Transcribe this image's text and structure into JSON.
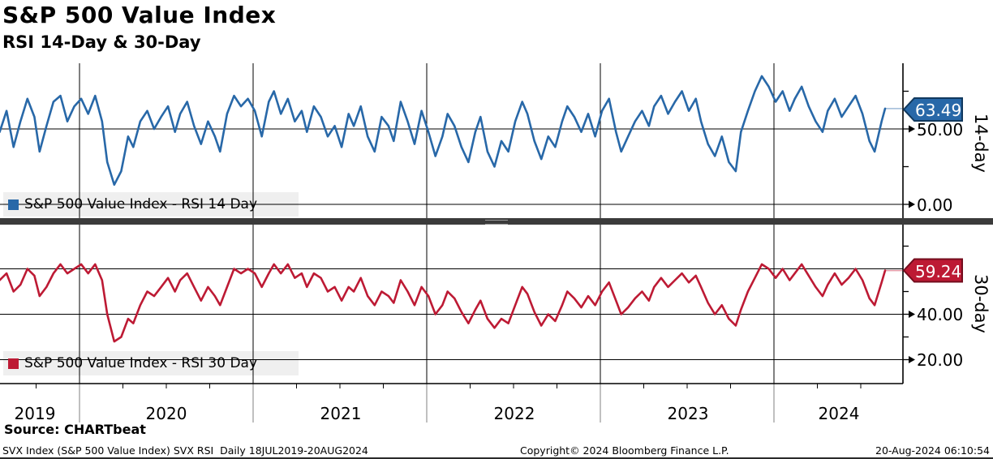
{
  "title": "S&P 500 Value Index",
  "subtitle": "RSI 14-Day & 30-Day",
  "colors": {
    "rsi14": "#2868a8",
    "rsi14_border": "#11395e",
    "rsi30": "#bd1a34",
    "rsi30_border": "#730c1d",
    "grid": "#000000",
    "legend_bg": "#efefef",
    "divider": "#3b3b3b"
  },
  "panels": {
    "top": {
      "axis_label": "14-day",
      "last_value_badge": "63.49",
      "ticks": [
        {
          "value": 50,
          "label": "50.00"
        },
        {
          "value": 0,
          "label": "0.00"
        }
      ],
      "minor_ticks": [
        75,
        25
      ],
      "gridlines": [
        50,
        0
      ]
    },
    "bottom": {
      "axis_label": "30-day",
      "last_value_badge": "59.24",
      "ticks": [
        {
          "value": 40,
          "label": "40.00"
        },
        {
          "value": 20,
          "label": "20.00"
        }
      ],
      "minor_ticks": [
        70,
        50,
        30
      ],
      "gridlines": [
        60,
        40,
        20
      ]
    }
  },
  "x_axis": {
    "years": [
      "2019",
      "2020",
      "2021",
      "2022",
      "2023",
      "2024"
    ]
  },
  "footer": {
    "source": "Source: CHARTbeat",
    "description": "SVX Index (S&P 500 Value Index) SVX RSI  Daily 18JUL2019-20AUG2024",
    "copyright": "Copyright© 2024 Bloomberg Finance L.P.",
    "timestamp": "20-Aug-2024 06:10:54"
  },
  "chart_data": [
    {
      "type": "line",
      "name": "S&P 500 Value Index - RSI 14 Day",
      "panel": "top",
      "color": "#2868a8",
      "x_unit": "decimal_year",
      "x_range": [
        "18JUL2019",
        "20AUG2024"
      ],
      "ylim_visible": [
        -10,
        93
      ],
      "last_value": 63.49,
      "points": [
        [
          2019.54,
          48
        ],
        [
          2019.58,
          62
        ],
        [
          2019.62,
          38
        ],
        [
          2019.66,
          55
        ],
        [
          2019.7,
          70
        ],
        [
          2019.74,
          58
        ],
        [
          2019.77,
          35
        ],
        [
          2019.81,
          52
        ],
        [
          2019.85,
          68
        ],
        [
          2019.89,
          72
        ],
        [
          2019.93,
          55
        ],
        [
          2019.97,
          65
        ],
        [
          2020.01,
          70
        ],
        [
          2020.05,
          60
        ],
        [
          2020.09,
          72
        ],
        [
          2020.13,
          55
        ],
        [
          2020.16,
          28
        ],
        [
          2020.2,
          13
        ],
        [
          2020.24,
          22
        ],
        [
          2020.28,
          45
        ],
        [
          2020.31,
          38
        ],
        [
          2020.35,
          55
        ],
        [
          2020.39,
          62
        ],
        [
          2020.43,
          50
        ],
        [
          2020.47,
          58
        ],
        [
          2020.51,
          65
        ],
        [
          2020.55,
          48
        ],
        [
          2020.58,
          60
        ],
        [
          2020.62,
          68
        ],
        [
          2020.66,
          52
        ],
        [
          2020.7,
          40
        ],
        [
          2020.74,
          55
        ],
        [
          2020.78,
          45
        ],
        [
          2020.81,
          35
        ],
        [
          2020.85,
          60
        ],
        [
          2020.89,
          72
        ],
        [
          2020.93,
          65
        ],
        [
          2020.97,
          70
        ],
        [
          2021.01,
          62
        ],
        [
          2021.05,
          45
        ],
        [
          2021.09,
          68
        ],
        [
          2021.12,
          75
        ],
        [
          2021.16,
          60
        ],
        [
          2021.2,
          70
        ],
        [
          2021.24,
          55
        ],
        [
          2021.28,
          62
        ],
        [
          2021.31,
          48
        ],
        [
          2021.35,
          65
        ],
        [
          2021.39,
          58
        ],
        [
          2021.43,
          45
        ],
        [
          2021.47,
          52
        ],
        [
          2021.51,
          38
        ],
        [
          2021.55,
          60
        ],
        [
          2021.58,
          52
        ],
        [
          2021.62,
          65
        ],
        [
          2021.66,
          45
        ],
        [
          2021.7,
          35
        ],
        [
          2021.74,
          58
        ],
        [
          2021.78,
          52
        ],
        [
          2021.81,
          42
        ],
        [
          2021.85,
          68
        ],
        [
          2021.89,
          55
        ],
        [
          2021.93,
          40
        ],
        [
          2021.97,
          62
        ],
        [
          2022.01,
          48
        ],
        [
          2022.05,
          32
        ],
        [
          2022.09,
          45
        ],
        [
          2022.12,
          60
        ],
        [
          2022.16,
          52
        ],
        [
          2022.2,
          38
        ],
        [
          2022.24,
          28
        ],
        [
          2022.28,
          48
        ],
        [
          2022.31,
          58
        ],
        [
          2022.35,
          35
        ],
        [
          2022.39,
          25
        ],
        [
          2022.43,
          42
        ],
        [
          2022.47,
          35
        ],
        [
          2022.51,
          55
        ],
        [
          2022.55,
          68
        ],
        [
          2022.58,
          60
        ],
        [
          2022.62,
          42
        ],
        [
          2022.66,
          30
        ],
        [
          2022.7,
          45
        ],
        [
          2022.74,
          38
        ],
        [
          2022.78,
          55
        ],
        [
          2022.81,
          65
        ],
        [
          2022.85,
          58
        ],
        [
          2022.89,
          48
        ],
        [
          2022.93,
          60
        ],
        [
          2022.97,
          45
        ],
        [
          2023.01,
          62
        ],
        [
          2023.05,
          70
        ],
        [
          2023.09,
          48
        ],
        [
          2023.12,
          35
        ],
        [
          2023.16,
          45
        ],
        [
          2023.2,
          55
        ],
        [
          2023.24,
          62
        ],
        [
          2023.28,
          52
        ],
        [
          2023.31,
          65
        ],
        [
          2023.35,
          72
        ],
        [
          2023.39,
          60
        ],
        [
          2023.43,
          68
        ],
        [
          2023.47,
          75
        ],
        [
          2023.51,
          62
        ],
        [
          2023.55,
          70
        ],
        [
          2023.58,
          55
        ],
        [
          2023.62,
          40
        ],
        [
          2023.66,
          32
        ],
        [
          2023.7,
          45
        ],
        [
          2023.74,
          28
        ],
        [
          2023.78,
          22
        ],
        [
          2023.81,
          48
        ],
        [
          2023.85,
          62
        ],
        [
          2023.89,
          75
        ],
        [
          2023.93,
          85
        ],
        [
          2023.97,
          78
        ],
        [
          2024.01,
          68
        ],
        [
          2024.05,
          75
        ],
        [
          2024.09,
          62
        ],
        [
          2024.12,
          70
        ],
        [
          2024.16,
          78
        ],
        [
          2024.2,
          65
        ],
        [
          2024.24,
          55
        ],
        [
          2024.28,
          48
        ],
        [
          2024.31,
          62
        ],
        [
          2024.35,
          70
        ],
        [
          2024.39,
          58
        ],
        [
          2024.43,
          65
        ],
        [
          2024.47,
          72
        ],
        [
          2024.51,
          60
        ],
        [
          2024.55,
          42
        ],
        [
          2024.58,
          35
        ],
        [
          2024.62,
          55
        ],
        [
          2024.64,
          63.49
        ]
      ]
    },
    {
      "type": "line",
      "name": "S&P 500 Value Index - RSI 30 Day",
      "panel": "bottom",
      "color": "#bd1a34",
      "x_unit": "decimal_year",
      "x_range": [
        "18JUL2019",
        "20AUG2024"
      ],
      "ylim_visible": [
        9,
        78
      ],
      "last_value": 59.24,
      "points": [
        [
          2019.54,
          55
        ],
        [
          2019.58,
          58
        ],
        [
          2019.62,
          50
        ],
        [
          2019.66,
          53
        ],
        [
          2019.7,
          60
        ],
        [
          2019.74,
          57
        ],
        [
          2019.77,
          48
        ],
        [
          2019.81,
          52
        ],
        [
          2019.85,
          58
        ],
        [
          2019.89,
          62
        ],
        [
          2019.93,
          58
        ],
        [
          2019.97,
          60
        ],
        [
          2020.01,
          62
        ],
        [
          2020.05,
          58
        ],
        [
          2020.09,
          62
        ],
        [
          2020.13,
          55
        ],
        [
          2020.16,
          40
        ],
        [
          2020.2,
          28
        ],
        [
          2020.24,
          30
        ],
        [
          2020.28,
          38
        ],
        [
          2020.31,
          36
        ],
        [
          2020.35,
          44
        ],
        [
          2020.39,
          50
        ],
        [
          2020.43,
          48
        ],
        [
          2020.47,
          52
        ],
        [
          2020.51,
          56
        ],
        [
          2020.55,
          50
        ],
        [
          2020.58,
          55
        ],
        [
          2020.62,
          58
        ],
        [
          2020.66,
          52
        ],
        [
          2020.7,
          46
        ],
        [
          2020.74,
          52
        ],
        [
          2020.78,
          48
        ],
        [
          2020.81,
          44
        ],
        [
          2020.85,
          52
        ],
        [
          2020.89,
          60
        ],
        [
          2020.93,
          58
        ],
        [
          2020.97,
          60
        ],
        [
          2021.01,
          58
        ],
        [
          2021.05,
          52
        ],
        [
          2021.09,
          58
        ],
        [
          2021.12,
          62
        ],
        [
          2021.16,
          58
        ],
        [
          2021.2,
          62
        ],
        [
          2021.24,
          56
        ],
        [
          2021.28,
          58
        ],
        [
          2021.31,
          52
        ],
        [
          2021.35,
          58
        ],
        [
          2021.39,
          56
        ],
        [
          2021.43,
          50
        ],
        [
          2021.47,
          52
        ],
        [
          2021.51,
          46
        ],
        [
          2021.55,
          52
        ],
        [
          2021.58,
          50
        ],
        [
          2021.62,
          56
        ],
        [
          2021.66,
          48
        ],
        [
          2021.7,
          44
        ],
        [
          2021.74,
          50
        ],
        [
          2021.78,
          48
        ],
        [
          2021.81,
          45
        ],
        [
          2021.85,
          55
        ],
        [
          2021.89,
          50
        ],
        [
          2021.93,
          44
        ],
        [
          2021.97,
          52
        ],
        [
          2022.01,
          48
        ],
        [
          2022.05,
          40
        ],
        [
          2022.09,
          44
        ],
        [
          2022.12,
          50
        ],
        [
          2022.16,
          47
        ],
        [
          2022.2,
          41
        ],
        [
          2022.24,
          36
        ],
        [
          2022.28,
          42
        ],
        [
          2022.31,
          46
        ],
        [
          2022.35,
          38
        ],
        [
          2022.39,
          34
        ],
        [
          2022.43,
          38
        ],
        [
          2022.47,
          36
        ],
        [
          2022.51,
          44
        ],
        [
          2022.55,
          52
        ],
        [
          2022.58,
          49
        ],
        [
          2022.62,
          41
        ],
        [
          2022.66,
          35
        ],
        [
          2022.7,
          40
        ],
        [
          2022.74,
          37
        ],
        [
          2022.78,
          44
        ],
        [
          2022.81,
          50
        ],
        [
          2022.85,
          47
        ],
        [
          2022.89,
          43
        ],
        [
          2022.93,
          48
        ],
        [
          2022.97,
          44
        ],
        [
          2023.01,
          50
        ],
        [
          2023.05,
          54
        ],
        [
          2023.09,
          46
        ],
        [
          2023.12,
          40
        ],
        [
          2023.16,
          43
        ],
        [
          2023.2,
          47
        ],
        [
          2023.24,
          50
        ],
        [
          2023.28,
          46
        ],
        [
          2023.31,
          52
        ],
        [
          2023.35,
          56
        ],
        [
          2023.39,
          52
        ],
        [
          2023.43,
          55
        ],
        [
          2023.47,
          58
        ],
        [
          2023.51,
          54
        ],
        [
          2023.55,
          57
        ],
        [
          2023.58,
          52
        ],
        [
          2023.62,
          45
        ],
        [
          2023.66,
          40
        ],
        [
          2023.7,
          44
        ],
        [
          2023.74,
          38
        ],
        [
          2023.78,
          35
        ],
        [
          2023.81,
          42
        ],
        [
          2023.85,
          50
        ],
        [
          2023.89,
          56
        ],
        [
          2023.93,
          62
        ],
        [
          2023.97,
          60
        ],
        [
          2024.01,
          56
        ],
        [
          2024.05,
          60
        ],
        [
          2024.09,
          55
        ],
        [
          2024.12,
          58
        ],
        [
          2024.16,
          62
        ],
        [
          2024.2,
          57
        ],
        [
          2024.24,
          52
        ],
        [
          2024.28,
          48
        ],
        [
          2024.31,
          53
        ],
        [
          2024.35,
          58
        ],
        [
          2024.39,
          53
        ],
        [
          2024.43,
          56
        ],
        [
          2024.47,
          60
        ],
        [
          2024.51,
          55
        ],
        [
          2024.55,
          47
        ],
        [
          2024.58,
          44
        ],
        [
          2024.62,
          54
        ],
        [
          2024.64,
          59.24
        ]
      ]
    }
  ]
}
